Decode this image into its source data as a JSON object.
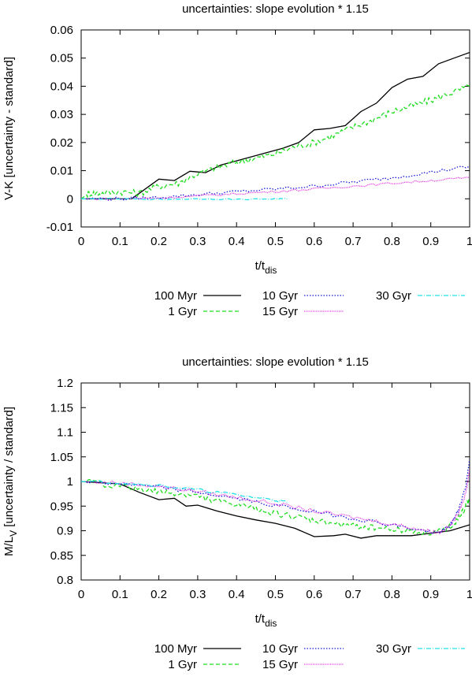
{
  "colors": {
    "100 Myr": "#000000",
    "1 Gyr": "#22dd22",
    "10 Gyr": "#1a1ad8",
    "15 Gyr": "#e020e0",
    "30 Gyr": "#22e0e8"
  },
  "legend_labels": [
    "100 Myr",
    "1 Gyr",
    "10 Gyr",
    "15 Gyr",
    "30 Gyr"
  ],
  "chart_data": [
    {
      "type": "line",
      "title": "uncertainties: slope evolution * 1.15",
      "xlabel_main": "t/t",
      "xlabel_sub": "dis",
      "ylabel_main": "V-K [uncertainty - standard]",
      "ylabel_sub": "",
      "xlim": [
        0,
        1
      ],
      "ylim": [
        -0.01,
        0.06
      ],
      "xticks": [
        0,
        0.1,
        0.2,
        0.3,
        0.4,
        0.5,
        0.6,
        0.7,
        0.8,
        0.9,
        1
      ],
      "xtick_labels": [
        "0",
        "0.1",
        "0.2",
        "0.3",
        "0.4",
        "0.5",
        "0.6",
        "0.7",
        "0.8",
        "0.9",
        "1"
      ],
      "yticks": [
        -0.01,
        0,
        0.01,
        0.02,
        0.03,
        0.04,
        0.05,
        0.06
      ],
      "ytick_labels": [
        "-0.01",
        "0",
        "0.01",
        "0.02",
        "0.03",
        "0.04",
        "0.05",
        "0.06"
      ],
      "legend_position": "below",
      "series": [
        {
          "name": "100 Myr",
          "style": "solid",
          "noise": 0,
          "x": [
            0,
            0.13,
            0.2,
            0.24,
            0.28,
            0.32,
            0.36,
            0.4,
            0.44,
            0.48,
            0.52,
            0.56,
            0.6,
            0.64,
            0.68,
            0.72,
            0.76,
            0.8,
            0.84,
            0.88,
            0.92,
            0.96,
            1.0
          ],
          "y": [
            0,
            0,
            0.007,
            0.0065,
            0.0098,
            0.0093,
            0.012,
            0.0135,
            0.015,
            0.0165,
            0.018,
            0.02,
            0.0245,
            0.025,
            0.026,
            0.031,
            0.034,
            0.0395,
            0.0425,
            0.0435,
            0.048,
            0.05,
            0.052
          ]
        },
        {
          "name": "1 Gyr",
          "style": "dashed",
          "noise": 0.0012,
          "x": [
            0,
            0.02,
            0.05,
            0.1,
            0.15,
            0.2,
            0.25,
            0.3,
            0.35,
            0.4,
            0.45,
            0.5,
            0.55,
            0.6,
            0.65,
            0.7,
            0.75,
            0.8,
            0.85,
            0.9,
            0.95,
            1.0
          ],
          "y": [
            0,
            0.002,
            0.002,
            0.0025,
            0.002,
            0.0045,
            0.0055,
            0.009,
            0.011,
            0.013,
            0.0145,
            0.016,
            0.0185,
            0.02,
            0.0225,
            0.0255,
            0.028,
            0.031,
            0.033,
            0.035,
            0.0375,
            0.04
          ]
        },
        {
          "name": "10 Gyr",
          "style": "dotted",
          "noise": 0.0006,
          "x": [
            0,
            0.1,
            0.2,
            0.3,
            0.4,
            0.5,
            0.6,
            0.7,
            0.8,
            0.9,
            1.0
          ],
          "y": [
            0,
            0,
            0.0005,
            0.0015,
            0.0025,
            0.0035,
            0.0045,
            0.006,
            0.0075,
            0.0095,
            0.0115
          ]
        },
        {
          "name": "15 Gyr",
          "style": "dashdot-fine",
          "noise": 0.0004,
          "x": [
            0,
            0.1,
            0.2,
            0.3,
            0.4,
            0.5,
            0.6,
            0.7,
            0.8,
            0.9,
            1.0
          ],
          "y": [
            0,
            0,
            0.0003,
            0.001,
            0.0018,
            0.0026,
            0.0035,
            0.0045,
            0.0055,
            0.0065,
            0.0075
          ]
        },
        {
          "name": "30 Gyr",
          "style": "dashdot",
          "noise": 0.0002,
          "x": [
            0,
            0.1,
            0.2,
            0.3,
            0.4,
            0.5,
            0.53
          ],
          "y": [
            0,
            0,
            -0.0002,
            0,
            -0.0002,
            0,
            0
          ]
        }
      ]
    },
    {
      "type": "line",
      "title": "uncertainties: slope evolution * 1.15",
      "xlabel_main": "t/t",
      "xlabel_sub": "dis",
      "ylabel_main": "M/L",
      "ylabel_sub": "V",
      "ylabel_tail": " [uncertainty / standard]",
      "xlim": [
        0,
        1
      ],
      "ylim": [
        0.8,
        1.2
      ],
      "xticks": [
        0,
        0.1,
        0.2,
        0.3,
        0.4,
        0.5,
        0.6,
        0.7,
        0.8,
        0.9,
        1
      ],
      "xtick_labels": [
        "0",
        "0.1",
        "0.2",
        "0.3",
        "0.4",
        "0.5",
        "0.6",
        "0.7",
        "0.8",
        "0.9",
        "1"
      ],
      "yticks": [
        0.8,
        0.85,
        0.9,
        0.95,
        1,
        1.05,
        1.1,
        1.15,
        1.2
      ],
      "ytick_labels": [
        "0.8",
        "0.85",
        "0.9",
        "0.95",
        "1",
        "1.05",
        "1.1",
        "1.15",
        "1.2"
      ],
      "legend_position": "below",
      "series": [
        {
          "name": "100 Myr",
          "style": "solid",
          "noise": 0,
          "x": [
            0,
            0.1,
            0.15,
            0.2,
            0.24,
            0.27,
            0.3,
            0.35,
            0.4,
            0.45,
            0.5,
            0.55,
            0.6,
            0.65,
            0.68,
            0.72,
            0.76,
            0.8,
            0.85,
            0.9,
            0.95,
            1.0
          ],
          "y": [
            1.0,
            0.995,
            0.978,
            0.963,
            0.966,
            0.95,
            0.952,
            0.94,
            0.93,
            0.922,
            0.915,
            0.905,
            0.888,
            0.89,
            0.893,
            0.885,
            0.89,
            0.89,
            0.89,
            0.895,
            0.9,
            0.912
          ]
        },
        {
          "name": "1 Gyr",
          "style": "dashed",
          "noise": 0.006,
          "x": [
            0,
            0.1,
            0.15,
            0.2,
            0.25,
            0.3,
            0.35,
            0.4,
            0.45,
            0.5,
            0.55,
            0.6,
            0.65,
            0.7,
            0.75,
            0.8,
            0.85,
            0.9,
            0.93,
            0.96,
            0.98,
            1.0
          ],
          "y": [
            1.0,
            0.99,
            0.985,
            0.978,
            0.975,
            0.97,
            0.96,
            0.952,
            0.945,
            0.935,
            0.928,
            0.92,
            0.915,
            0.91,
            0.907,
            0.903,
            0.9,
            0.895,
            0.9,
            0.915,
            0.935,
            0.965
          ]
        },
        {
          "name": "10 Gyr",
          "style": "dotted",
          "noise": 0.004,
          "x": [
            0,
            0.1,
            0.2,
            0.3,
            0.4,
            0.5,
            0.6,
            0.7,
            0.8,
            0.88,
            0.92,
            0.95,
            0.97,
            0.99,
            1.0
          ],
          "y": [
            1.0,
            0.995,
            0.988,
            0.978,
            0.965,
            0.952,
            0.938,
            0.925,
            0.912,
            0.9,
            0.895,
            0.91,
            0.94,
            0.99,
            1.045
          ]
        },
        {
          "name": "15 Gyr",
          "style": "dashdot-fine",
          "noise": 0.004,
          "x": [
            0,
            0.1,
            0.2,
            0.3,
            0.4,
            0.5,
            0.6,
            0.7,
            0.8,
            0.88,
            0.92,
            0.95,
            0.97,
            0.99,
            1.0
          ],
          "y": [
            1.0,
            0.997,
            0.99,
            0.98,
            0.968,
            0.955,
            0.94,
            0.927,
            0.914,
            0.902,
            0.896,
            0.91,
            0.935,
            0.975,
            1.025
          ]
        },
        {
          "name": "30 Gyr",
          "style": "dashdot",
          "noise": 0.003,
          "x": [
            0,
            0.1,
            0.2,
            0.3,
            0.4,
            0.5,
            0.53
          ],
          "y": [
            1.0,
            0.998,
            0.992,
            0.983,
            0.973,
            0.962,
            0.958
          ]
        }
      ]
    }
  ]
}
